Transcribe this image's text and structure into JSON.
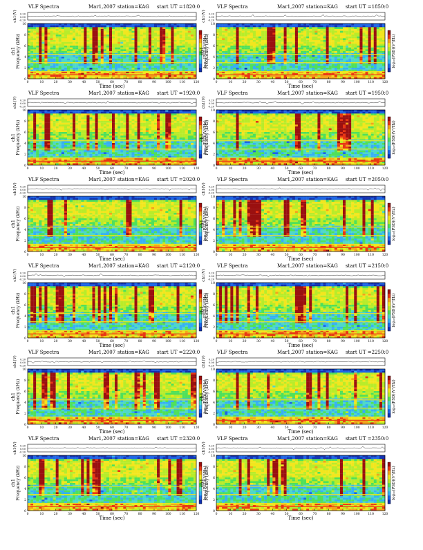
{
  "sheet": {
    "header_left": "VLF Spectra",
    "date": "Mar1,2007",
    "station_label": "station=KAG",
    "start_label": "start  UT  ="
  },
  "colors": {
    "spec_levels": [
      "#1030b0",
      "#1c64e6",
      "#36b0f4",
      "#4ed8c8",
      "#4fe05a",
      "#b8ec2a",
      "#f2e61e",
      "#f4a21c",
      "#e83614",
      "#9a1010"
    ],
    "waveform_line": "#303030",
    "frame": "#000000"
  },
  "chart_data": [
    {
      "type": "heatmap",
      "title_time": "1820:0",
      "wave_label": "ch1(V)",
      "freq_label_top": "ch1",
      "freq_label": "Frequency (kHz)",
      "colorbar_label": "log₁₀(PSD)(V²/Hz)",
      "xlabel": "Time (sec)",
      "xticks": [
        0,
        10,
        20,
        30,
        40,
        50,
        60,
        70,
        80,
        90,
        100,
        110,
        120
      ],
      "yticks": [
        0,
        2,
        4,
        6,
        8,
        10
      ],
      "wave_ticks": [
        "0.20",
        "0.00",
        "-0.20"
      ],
      "xlim": [
        0,
        120
      ],
      "ylim": [
        0,
        10
      ]
    },
    {
      "type": "heatmap",
      "title_time": "1850:0",
      "wave_label": "ch1(V)",
      "freq_label_top": "ch1",
      "freq_label": "Frequency (kHz)",
      "colorbar_label": "log₁₀(PSD)(V²/Hz)",
      "xlabel": "Time (sec)",
      "xticks": [
        0,
        10,
        20,
        30,
        40,
        50,
        60,
        70,
        80,
        90,
        100,
        110,
        120
      ],
      "yticks": [
        0,
        2,
        4,
        6,
        8,
        10
      ],
      "wave_ticks": [
        "0.20",
        "0.00",
        "-0.20"
      ],
      "xlim": [
        0,
        120
      ],
      "ylim": [
        0,
        10
      ]
    },
    {
      "type": "heatmap",
      "title_time": "1920:0",
      "wave_label": "ch1(V)",
      "freq_label_top": "ch1",
      "freq_label": "Frequency (kHz)",
      "colorbar_label": "log₁₀(PSD)(V²/Hz)",
      "xlabel": "Time (sec)",
      "xticks": [
        0,
        10,
        20,
        30,
        40,
        50,
        60,
        70,
        80,
        90,
        100,
        110,
        120
      ],
      "yticks": [
        0,
        2,
        4,
        6,
        8,
        10
      ],
      "wave_ticks": [
        "0.20",
        "0.00",
        "-0.20"
      ],
      "xlim": [
        0,
        120
      ],
      "ylim": [
        0,
        10
      ]
    },
    {
      "type": "heatmap",
      "title_time": "1950:0",
      "wave_label": "ch1(V)",
      "freq_label_top": "ch1",
      "freq_label": "Frequency (kHz)",
      "colorbar_label": "log₁₀(PSD)(V²/Hz)",
      "xlabel": "Time (sec)",
      "xticks": [
        0,
        10,
        20,
        30,
        40,
        50,
        60,
        70,
        80,
        90,
        100,
        110,
        120
      ],
      "yticks": [
        0,
        2,
        4,
        6,
        8,
        10
      ],
      "wave_ticks": [
        "0.20",
        "0.00",
        "-0.20"
      ],
      "xlim": [
        0,
        120
      ],
      "ylim": [
        0,
        10
      ]
    },
    {
      "type": "heatmap",
      "title_time": "2020:0",
      "wave_label": "ch1(V)",
      "freq_label_top": "ch1",
      "freq_label": "Frequency (kHz)",
      "colorbar_label": "log₁₀(PSD)(V²/Hz)",
      "xlabel": "Time (sec)",
      "xticks": [
        0,
        10,
        20,
        30,
        40,
        50,
        60,
        70,
        80,
        90,
        100,
        110,
        120
      ],
      "yticks": [
        0,
        2,
        4,
        6,
        8,
        10
      ],
      "wave_ticks": [
        "0.20",
        "0.00",
        "-0.20"
      ],
      "xlim": [
        0,
        120
      ],
      "ylim": [
        0,
        10
      ]
    },
    {
      "type": "heatmap",
      "title_time": "2050:0",
      "wave_label": "ch1(V)",
      "freq_label_top": "ch1",
      "freq_label": "Frequency (kHz)",
      "colorbar_label": "log₁₀(PSD)(V²/Hz)",
      "xlabel": "Time (sec)",
      "xticks": [
        0,
        10,
        20,
        30,
        40,
        50,
        60,
        70,
        80,
        90,
        100,
        110,
        120
      ],
      "yticks": [
        0,
        2,
        4,
        6,
        8,
        10
      ],
      "wave_ticks": [
        "0.20",
        "0.00",
        "-0.20"
      ],
      "xlim": [
        0,
        120
      ],
      "ylim": [
        0,
        10
      ]
    },
    {
      "type": "heatmap",
      "title_time": "2120:0",
      "wave_label": "ch1(V)",
      "freq_label_top": "ch1",
      "freq_label": "Frequency (kHz)",
      "colorbar_label": "log₁₀(PSD)(V²/Hz)",
      "xlabel": "Time (sec)",
      "xticks": [
        0,
        10,
        20,
        30,
        40,
        50,
        60,
        70,
        80,
        90,
        100,
        110,
        120
      ],
      "yticks": [
        0,
        2,
        4,
        6,
        8,
        10
      ],
      "wave_ticks": [
        "0.20",
        "0.00",
        "-0.20"
      ],
      "xlim": [
        0,
        120
      ],
      "ylim": [
        0,
        10
      ]
    },
    {
      "type": "heatmap",
      "title_time": "2150:0",
      "wave_label": "ch1(V)",
      "freq_label_top": "ch1",
      "freq_label": "Frequency (kHz)",
      "colorbar_label": "log₁₀(PSD)(V²/Hz)",
      "xlabel": "Time (sec)",
      "xticks": [
        0,
        10,
        20,
        30,
        40,
        50,
        60,
        70,
        80,
        90,
        100,
        110,
        120
      ],
      "yticks": [
        0,
        2,
        4,
        6,
        8,
        10
      ],
      "wave_ticks": [
        "0.20",
        "0.00",
        "-0.20"
      ],
      "xlim": [
        0,
        120
      ],
      "ylim": [
        0,
        10
      ]
    },
    {
      "type": "heatmap",
      "title_time": "2220:0",
      "wave_label": "ch1(V)",
      "freq_label_top": "ch1",
      "freq_label": "Frequency (kHz)",
      "colorbar_label": "log₁₀(PSD)(V²/Hz)",
      "xlabel": "Time (sec)",
      "xticks": [
        0,
        10,
        20,
        30,
        40,
        50,
        60,
        70,
        80,
        90,
        100,
        110,
        120
      ],
      "yticks": [
        0,
        2,
        4,
        6,
        8,
        10
      ],
      "wave_ticks": [
        "0.20",
        "0.00",
        "-0.20"
      ],
      "xlim": [
        0,
        120
      ],
      "ylim": [
        0,
        10
      ]
    },
    {
      "type": "heatmap",
      "title_time": "2250:0",
      "wave_label": "ch1(V)",
      "freq_label_top": "ch1",
      "freq_label": "Frequency (kHz)",
      "colorbar_label": "log₁₀(PSD)(V²/Hz)",
      "xlabel": "Time (sec)",
      "xticks": [
        0,
        10,
        20,
        30,
        40,
        50,
        60,
        70,
        80,
        90,
        100,
        110,
        120
      ],
      "yticks": [
        0,
        2,
        4,
        6,
        8,
        10
      ],
      "wave_ticks": [
        "0.20",
        "0.00",
        "-0.20"
      ],
      "xlim": [
        0,
        120
      ],
      "ylim": [
        0,
        10
      ]
    },
    {
      "type": "heatmap",
      "title_time": "2320:0",
      "wave_label": "ch1(V)",
      "freq_label_top": "ch1",
      "freq_label": "Frequency (kHz)",
      "colorbar_label": "log₁₀(PSD)(V²/Hz)",
      "xlabel": "Time (sec)",
      "xticks": [
        0,
        10,
        20,
        30,
        40,
        50,
        60,
        70,
        80,
        90,
        100,
        110,
        120
      ],
      "yticks": [
        0,
        2,
        4,
        6,
        8,
        10
      ],
      "wave_ticks": [
        "0.20",
        "0.00",
        "-0.20"
      ],
      "xlim": [
        0,
        120
      ],
      "ylim": [
        0,
        10
      ]
    },
    {
      "type": "heatmap",
      "title_time": "2350:0",
      "wave_label": "ch1(V)",
      "freq_label_top": "ch1",
      "freq_label": "Frequency (kHz)",
      "colorbar_label": "log₁₀(PSD)(V²/Hz)",
      "xlabel": "Time (sec)",
      "xticks": [
        0,
        10,
        20,
        30,
        40,
        50,
        60,
        70,
        80,
        90,
        100,
        110,
        120
      ],
      "yticks": [
        0,
        2,
        4,
        6,
        8,
        10
      ],
      "wave_ticks": [
        "0.20",
        "0.00",
        "-0.20"
      ],
      "xlim": [
        0,
        120
      ],
      "ylim": [
        0,
        10
      ]
    }
  ]
}
